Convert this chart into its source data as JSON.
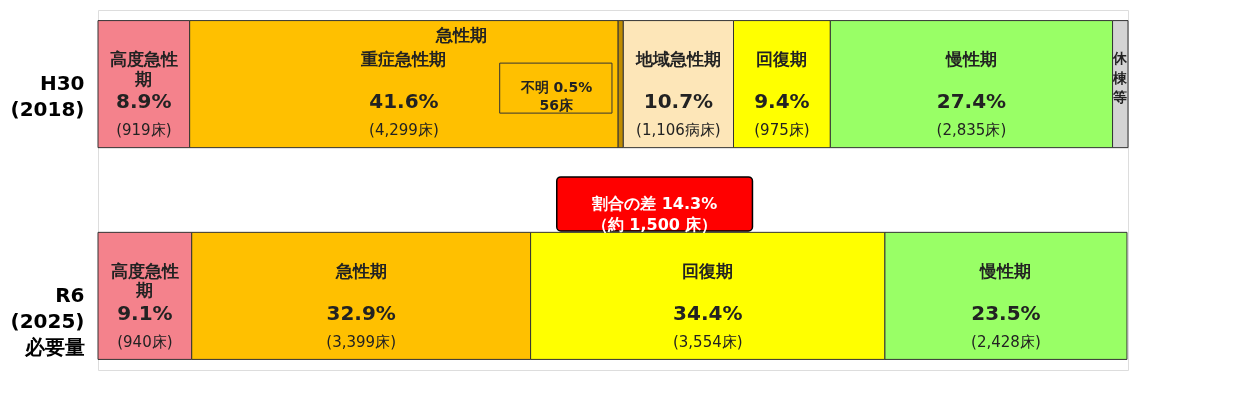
{
  "chart_data": {
    "type": "bar",
    "orientation": "horizontal",
    "stacked": true,
    "categories": [
      "H30 (2018)",
      "R6 (2025) 必要量"
    ],
    "xlim": [
      0,
      100
    ],
    "tick_labels": false,
    "grid": false,
    "legend": false,
    "data_labels": true,
    "series": [
      {
        "name": "高度急性期",
        "color": "#f4828c",
        "values": [
          8.9,
          9.1
        ],
        "value_labels": [
          "8.9%",
          "9.1%"
        ]
      },
      {
        "name": "重症急性期",
        "color": "#ffc000",
        "values": [
          41.6,
          null
        ],
        "value_labels": [
          "41.6%",
          null
        ]
      },
      {
        "name": "急性期",
        "color": "#ffc000",
        "values": [
          null,
          32.9
        ],
        "value_labels": [
          null,
          "32.9%"
        ]
      },
      {
        "name": "不明",
        "color": "#c08c00",
        "values": [
          0.5,
          null
        ],
        "value_labels": [
          "0.5%",
          null
        ]
      },
      {
        "name": "地域急性期",
        "color": "#fde6b8",
        "values": [
          10.7,
          null
        ],
        "value_labels": [
          "10.7%",
          null
        ]
      },
      {
        "name": "回復期",
        "color": "#ffff00",
        "values": [
          9.4,
          34.4
        ],
        "value_labels": [
          "9.4%",
          "34.4%"
        ]
      },
      {
        "name": "慢性期",
        "color": "#99ff66",
        "values": [
          27.4,
          23.5
        ],
        "value_labels": [
          "27.4%",
          "23.5%"
        ]
      },
      {
        "name": "休棟等",
        "color": "#d4d4d4",
        "values": [
          1.5,
          null
        ],
        "value_labels": [
          null,
          null
        ]
      }
    ],
    "annotations": [
      "急性期",
      "割合の差 14.3%\n（約 1,500 床）",
      "(919床)",
      "(940床)",
      "(4,299床)",
      "(3,399床)",
      "56床",
      "(1,106病床)",
      "(975床)",
      "(3,554床)",
      "(2,835床)",
      "(2,428床)"
    ]
  }
}
